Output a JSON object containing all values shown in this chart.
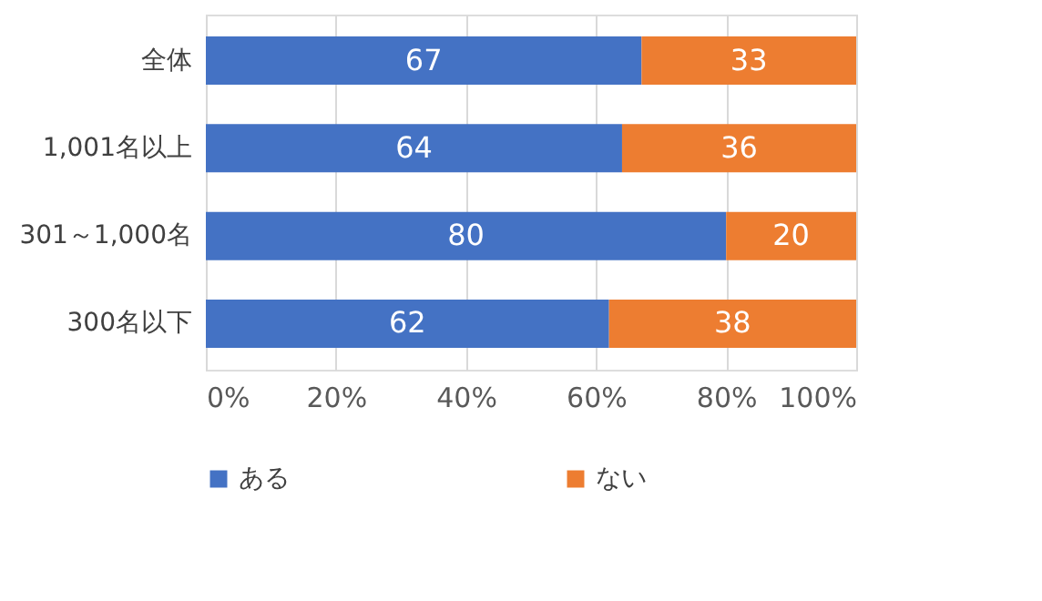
{
  "chart_data": {
    "type": "bar",
    "orientation": "horizontal",
    "stacked": true,
    "categories": [
      "全体",
      "1,001名以上",
      "301～1,000名",
      "300名以下"
    ],
    "series": [
      {
        "name": "ある",
        "color": "#4472c4",
        "values": [
          67,
          64,
          80,
          62
        ]
      },
      {
        "name": "ない",
        "color": "#ed7d31",
        "values": [
          33,
          36,
          20,
          38
        ]
      }
    ],
    "xlim": [
      0,
      100
    ],
    "xticks": [
      {
        "value": 0,
        "label": "0%"
      },
      {
        "value": 20,
        "label": "20%"
      },
      {
        "value": 40,
        "label": "40%"
      },
      {
        "value": 60,
        "label": "60%"
      },
      {
        "value": 80,
        "label": "80%"
      },
      {
        "value": 100,
        "label": "100%"
      }
    ],
    "grid": "x",
    "legend": "bottom",
    "data_labels": true
  }
}
